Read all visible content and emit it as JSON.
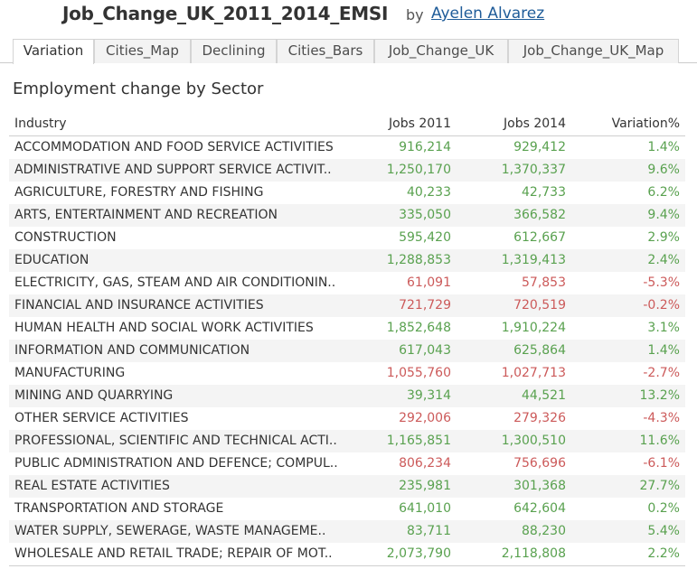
{
  "header": {
    "workbook_title": "Job_Change_UK_2011_2014_EMSI",
    "by_label": "by",
    "author": "Ayelen Alvarez"
  },
  "tabs": [
    {
      "label": "Variation",
      "active": true
    },
    {
      "label": "Cities_Map",
      "active": false
    },
    {
      "label": "Declining",
      "active": false
    },
    {
      "label": "Cities_Bars",
      "active": false
    },
    {
      "label": "Job_Change_UK",
      "active": false
    },
    {
      "label": "Job_Change_UK_Map",
      "active": false
    }
  ],
  "sheet": {
    "title": "Employment change by Sector",
    "columns": {
      "industry": "Industry",
      "jobs_2011": "Jobs 2011",
      "jobs_2014": "Jobs 2014",
      "variation": "Variation%"
    },
    "colors": {
      "positive": "#59a14f",
      "negative": "#cc5a5a"
    },
    "rows": [
      {
        "industry": "ACCOMMODATION AND FOOD SERVICE ACTIVITIES",
        "jobs_2011": "916,214",
        "jobs_2014": "929,412",
        "variation": "1.4%",
        "trend": "positive"
      },
      {
        "industry": "ADMINISTRATIVE AND SUPPORT SERVICE ACTIVIT..",
        "jobs_2011": "1,250,170",
        "jobs_2014": "1,370,337",
        "variation": "9.6%",
        "trend": "positive"
      },
      {
        "industry": "AGRICULTURE, FORESTRY AND FISHING",
        "jobs_2011": "40,233",
        "jobs_2014": "42,733",
        "variation": "6.2%",
        "trend": "positive"
      },
      {
        "industry": "ARTS, ENTERTAINMENT AND RECREATION",
        "jobs_2011": "335,050",
        "jobs_2014": "366,582",
        "variation": "9.4%",
        "trend": "positive"
      },
      {
        "industry": "CONSTRUCTION",
        "jobs_2011": "595,420",
        "jobs_2014": "612,667",
        "variation": "2.9%",
        "trend": "positive"
      },
      {
        "industry": "EDUCATION",
        "jobs_2011": "1,288,853",
        "jobs_2014": "1,319,413",
        "variation": "2.4%",
        "trend": "positive"
      },
      {
        "industry": "ELECTRICITY, GAS, STEAM AND AIR CONDITIONIN..",
        "jobs_2011": "61,091",
        "jobs_2014": "57,853",
        "variation": "-5.3%",
        "trend": "negative"
      },
      {
        "industry": "FINANCIAL AND INSURANCE ACTIVITIES",
        "jobs_2011": "721,729",
        "jobs_2014": "720,519",
        "variation": "-0.2%",
        "trend": "negative"
      },
      {
        "industry": "HUMAN HEALTH AND SOCIAL WORK ACTIVITIES",
        "jobs_2011": "1,852,648",
        "jobs_2014": "1,910,224",
        "variation": "3.1%",
        "trend": "positive"
      },
      {
        "industry": "INFORMATION AND COMMUNICATION",
        "jobs_2011": "617,043",
        "jobs_2014": "625,864",
        "variation": "1.4%",
        "trend": "positive"
      },
      {
        "industry": "MANUFACTURING",
        "jobs_2011": "1,055,760",
        "jobs_2014": "1,027,713",
        "variation": "-2.7%",
        "trend": "negative"
      },
      {
        "industry": "MINING AND QUARRYING",
        "jobs_2011": "39,314",
        "jobs_2014": "44,521",
        "variation": "13.2%",
        "trend": "positive"
      },
      {
        "industry": "OTHER SERVICE ACTIVITIES",
        "jobs_2011": "292,006",
        "jobs_2014": "279,326",
        "variation": "-4.3%",
        "trend": "negative"
      },
      {
        "industry": "PROFESSIONAL, SCIENTIFIC AND TECHNICAL ACTI..",
        "jobs_2011": "1,165,851",
        "jobs_2014": "1,300,510",
        "variation": "11.6%",
        "trend": "positive"
      },
      {
        "industry": "PUBLIC ADMINISTRATION AND DEFENCE; COMPUL..",
        "jobs_2011": "806,234",
        "jobs_2014": "756,696",
        "variation": "-6.1%",
        "trend": "negative"
      },
      {
        "industry": "REAL ESTATE ACTIVITIES",
        "jobs_2011": "235,981",
        "jobs_2014": "301,368",
        "variation": "27.7%",
        "trend": "positive"
      },
      {
        "industry": "TRANSPORTATION AND STORAGE",
        "jobs_2011": "641,010",
        "jobs_2014": "642,604",
        "variation": "0.2%",
        "trend": "positive"
      },
      {
        "industry": "WATER SUPPLY, SEWERAGE, WASTE MANAGEME..",
        "jobs_2011": "83,711",
        "jobs_2014": "88,230",
        "variation": "5.4%",
        "trend": "positive"
      },
      {
        "industry": "WHOLESALE AND RETAIL TRADE; REPAIR OF MOT..",
        "jobs_2011": "2,073,790",
        "jobs_2014": "2,118,808",
        "variation": "2.2%",
        "trend": "positive"
      }
    ]
  }
}
